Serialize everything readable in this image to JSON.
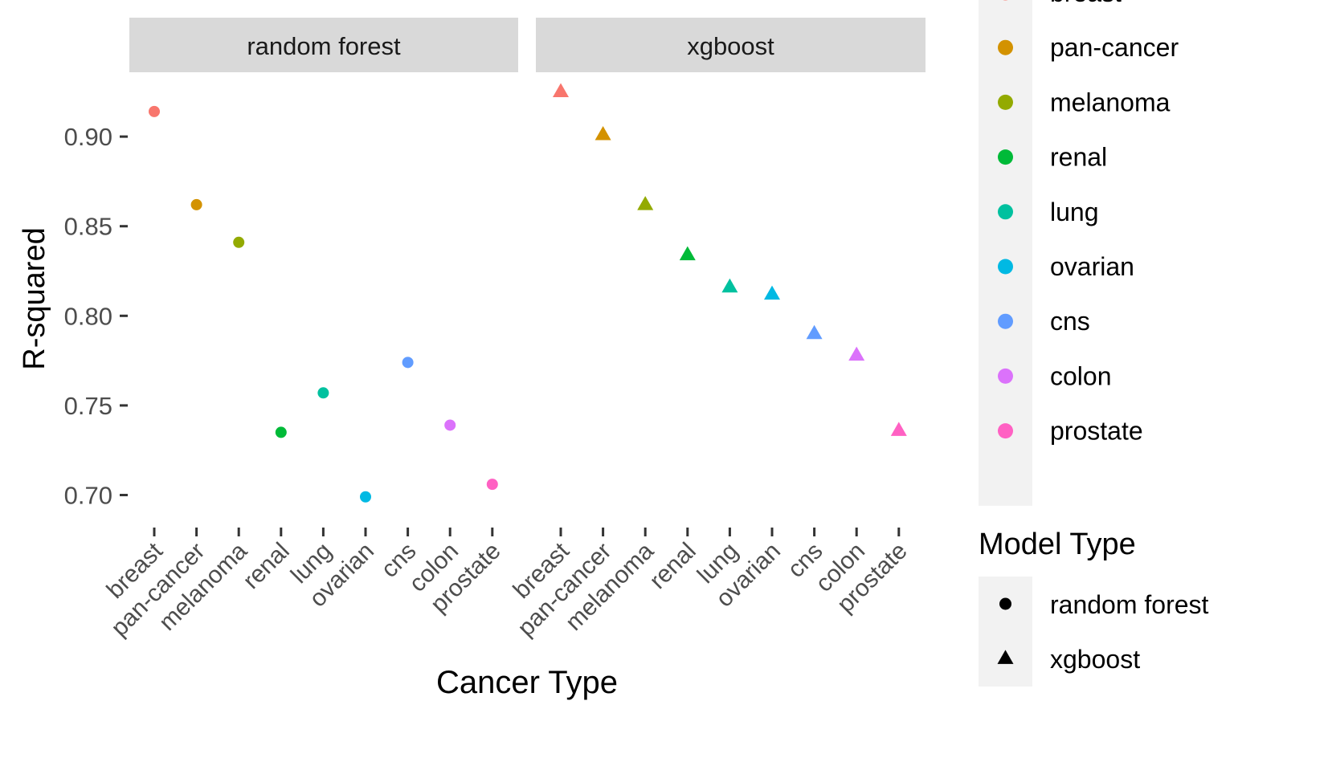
{
  "chart_data": {
    "type": "scatter",
    "xlabel": "Cancer Type",
    "ylabel": "R-squared",
    "ylim": [
      0.685,
      0.935
    ],
    "yticks": [
      "0.70",
      "0.75",
      "0.80",
      "0.85",
      "0.90"
    ],
    "categories": [
      "breast",
      "pan-cancer",
      "melanoma",
      "renal",
      "lung",
      "ovarian",
      "cns",
      "colon",
      "prostate"
    ],
    "facets": [
      {
        "name": "random forest",
        "shape": "circle",
        "values": [
          0.914,
          0.862,
          0.841,
          0.735,
          0.757,
          0.699,
          0.774,
          0.739,
          0.706
        ]
      },
      {
        "name": "xgboost",
        "shape": "triangle",
        "values": [
          0.925,
          0.901,
          0.862,
          0.834,
          0.816,
          0.812,
          0.79,
          0.778,
          0.736
        ]
      }
    ],
    "legend_color": {
      "items": [
        {
          "label": "breast",
          "color": "#F8766D"
        },
        {
          "label": "pan-cancer",
          "color": "#D39200"
        },
        {
          "label": "melanoma",
          "color": "#93AA00"
        },
        {
          "label": "renal",
          "color": "#00BA38"
        },
        {
          "label": "lung",
          "color": "#00C19F"
        },
        {
          "label": "ovarian",
          "color": "#00B9E3"
        },
        {
          "label": "cns",
          "color": "#619CFF"
        },
        {
          "label": "colon",
          "color": "#DB72FB"
        },
        {
          "label": "prostate",
          "color": "#FF61C3"
        }
      ]
    },
    "legend_shape": {
      "title": "Model Type",
      "items": [
        {
          "label": "random forest",
          "shape": "circle"
        },
        {
          "label": "xgboost",
          "shape": "triangle"
        }
      ]
    },
    "grid": false,
    "legend_position": "right"
  }
}
